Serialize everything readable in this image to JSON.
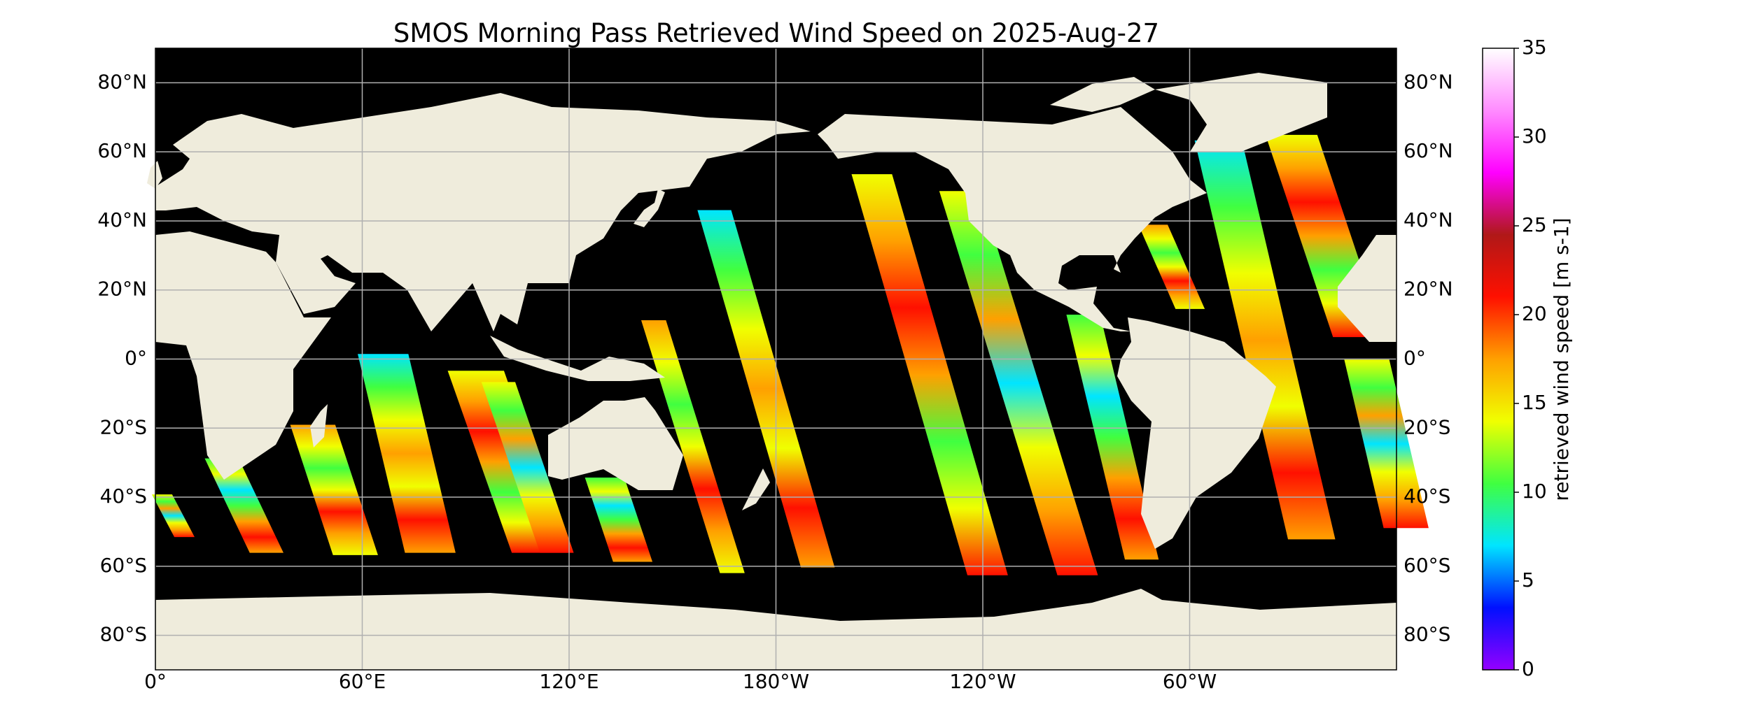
{
  "map": {
    "title": "SMOS Morning Pass Retrieved Wind Speed on 2025-Aug-27",
    "lon_range": [
      0,
      360
    ],
    "lat_range": [
      90,
      -90
    ],
    "lat_ticks": [
      {
        "value": 80,
        "label": "80°N"
      },
      {
        "value": 60,
        "label": "60°N"
      },
      {
        "value": 40,
        "label": "40°N"
      },
      {
        "value": 20,
        "label": "20°N"
      },
      {
        "value": 0,
        "label": "0°"
      },
      {
        "value": -20,
        "label": "20°S"
      },
      {
        "value": -40,
        "label": "40°S"
      },
      {
        "value": -60,
        "label": "60°S"
      },
      {
        "value": -80,
        "label": "80°S"
      }
    ],
    "lon_ticks": [
      {
        "value": 0,
        "label": "0°"
      },
      {
        "value": 60,
        "label": "60°E"
      },
      {
        "value": 120,
        "label": "120°E"
      },
      {
        "value": 180,
        "label": "180°W"
      },
      {
        "value": 240,
        "label": "120°W"
      },
      {
        "value": 300,
        "label": "60°W"
      }
    ],
    "grid": true
  },
  "colorbar": {
    "label": "retrieved wind speed [m s-1]",
    "range": [
      0,
      35
    ],
    "ticks": [
      0,
      5,
      10,
      15,
      20,
      25,
      30,
      35
    ],
    "colors": [
      "#9400ff",
      "#0010ff",
      "#00e5ff",
      "#40ff40",
      "#f0ff00",
      "#ffa000",
      "#ff1000",
      "#b01818",
      "#ff00ff",
      "#ff8cff",
      "#ffffff"
    ]
  }
}
